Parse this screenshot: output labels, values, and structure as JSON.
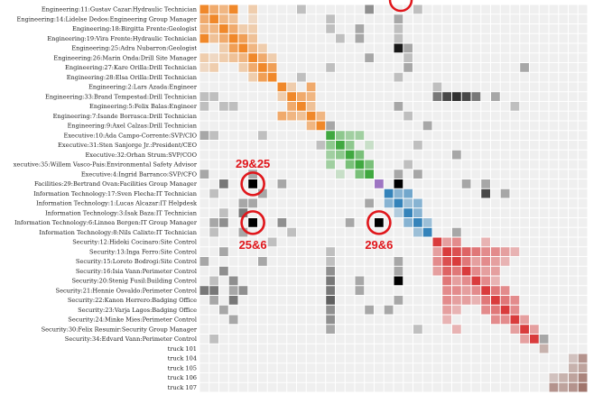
{
  "chart_data": {
    "type": "heatmap",
    "title": "",
    "xlabel": "",
    "ylabel": "",
    "grid": true,
    "legend": "none",
    "rows": [
      {
        "label": "Engineering:11:Gustav Cazar:Hydraulic Technician",
        "group": "engineering"
      },
      {
        "label": "Engineering:14:Lidelse Dedos:Engineering Group Manager",
        "group": "engineering"
      },
      {
        "label": "Engineering:18:Birgitta Frente:Geologist",
        "group": "engineering"
      },
      {
        "label": "Engineering:19:Vira Frente:Hydraulic Technician",
        "group": "engineering"
      },
      {
        "label": "Engineering:25:Adra Nubarron:Geologist",
        "group": "engineering"
      },
      {
        "label": "Engineering:26:Marin Onda:Drill Site Manager",
        "group": "engineering"
      },
      {
        "label": "Engineering:27:Kare Orilla:Drill Technician",
        "group": "engineering"
      },
      {
        "label": "Engineering:28:Elsa Orilla:Drill Technician",
        "group": "engineering"
      },
      {
        "label": "Engineering:2:Lars Azada:Engineer",
        "group": "engineering2"
      },
      {
        "label": "Engineering:33:Brand Tempestad:Drill Technician",
        "group": "engineering2"
      },
      {
        "label": "Engineering:5:Felix Balas:Engineer",
        "group": "engineering2"
      },
      {
        "label": "Engineering:7:Isande Borrasca:Drill Technician",
        "group": "engineering2"
      },
      {
        "label": "Engineering:9:Axel Calzas:Drill Technician",
        "group": "engineering2"
      },
      {
        "label": "Executive:10:Ada Campo-Corrente:SVP/CIO",
        "group": "executive"
      },
      {
        "label": "Executive:31:Sten Sanjorge Jr.:President/CEO",
        "group": "executive"
      },
      {
        "label": "Executive:32:Orhan Strum:SVP/COO",
        "group": "executive"
      },
      {
        "label": "xecutive:35:Willem Vasco-Pais:Environmental Safety Advisor",
        "group": "executive"
      },
      {
        "label": "Executive:4:Ingrid Barranco:SVP/CFO",
        "group": "executive"
      },
      {
        "label": "Facilities:29:Bertrand Ovan:Facilities Group Manager",
        "group": "facilities"
      },
      {
        "label": "Information Technology:17:Sven Flecha:IT Technician",
        "group": "it"
      },
      {
        "label": "Information Technology:1:Lucas Alcazar:IT Helpdesk",
        "group": "it"
      },
      {
        "label": "Information Technology:3:Isak Baza:IT Technician",
        "group": "it"
      },
      {
        "label": "Information Technology:6:Linnea Bergen:IT Group Manager",
        "group": "it"
      },
      {
        "label": "Information Technology:8:Nils Calixto:IT Technician",
        "group": "it"
      },
      {
        "label": "Security:12:Hideki Cocinaro:Site Control",
        "group": "security"
      },
      {
        "label": "Security:13:Inga Ferro:Site Control",
        "group": "security"
      },
      {
        "label": "Security:15:Loreto Bodrogi:Site Control",
        "group": "security"
      },
      {
        "label": "Security:16:Isia Vann:Perimeter Control",
        "group": "security"
      },
      {
        "label": "Security:20:Stenig Fusil:Building Control",
        "group": "security"
      },
      {
        "label": "Security:21:Hennie Osvaldo:Perimeter Control",
        "group": "security"
      },
      {
        "label": "Security:22:Kanon Herrero:Badging Office",
        "group": "security"
      },
      {
        "label": "Security:23:Varja Lagos:Badging Office",
        "group": "security"
      },
      {
        "label": "Security:24:Minke Mies:Perimeter Control",
        "group": "security"
      },
      {
        "label": "Security:30:Felix Resumir:Security Group Manager",
        "group": "security"
      },
      {
        "label": "Security:34:Edvard Vann:Perimeter Control",
        "group": "security"
      },
      {
        "label": "truck 101",
        "group": "truck"
      },
      {
        "label": "truck 104",
        "group": "truck"
      },
      {
        "label": "truck 105",
        "group": "truck"
      },
      {
        "label": "truck 106",
        "group": "truck"
      },
      {
        "label": "truck 107",
        "group": "truck"
      }
    ],
    "group_colors": {
      "engineering": "#f07c14",
      "engineering2": "#f07c14",
      "executive": "#2ca02c",
      "facilities": "#9467bd",
      "it": "#1f77b4",
      "security": "#d62728",
      "truck": "#8c564b",
      "cross": "#000000"
    },
    "cells": [
      [
        0,
        0,
        0.9
      ],
      [
        0,
        1,
        0.6
      ],
      [
        0,
        2,
        0.5
      ],
      [
        0,
        3,
        0.9
      ],
      [
        0,
        5,
        0.3
      ],
      [
        0,
        10,
        0.2
      ],
      [
        0,
        17,
        0.4
      ],
      [
        0,
        22,
        0.2
      ],
      [
        1,
        0,
        0.6
      ],
      [
        1,
        1,
        0.9
      ],
      [
        1,
        2,
        0.5
      ],
      [
        1,
        3,
        0.4
      ],
      [
        1,
        5,
        0.2
      ],
      [
        1,
        13,
        0.2
      ],
      [
        1,
        20,
        0.3
      ],
      [
        2,
        0,
        0.5
      ],
      [
        2,
        1,
        0.5
      ],
      [
        2,
        2,
        0.9
      ],
      [
        2,
        3,
        0.6
      ],
      [
        2,
        4,
        0.3
      ],
      [
        2,
        5,
        0.3
      ],
      [
        2,
        13,
        0.2
      ],
      [
        2,
        16,
        0.3
      ],
      [
        2,
        20,
        0.2
      ],
      [
        3,
        0,
        0.9
      ],
      [
        3,
        1,
        0.4
      ],
      [
        3,
        2,
        0.6
      ],
      [
        3,
        3,
        0.9
      ],
      [
        3,
        4,
        0.7
      ],
      [
        3,
        5,
        0.4
      ],
      [
        3,
        14,
        0.2
      ],
      [
        3,
        16,
        0.3
      ],
      [
        3,
        20,
        0.2
      ],
      [
        4,
        2,
        0.3
      ],
      [
        4,
        3,
        0.7
      ],
      [
        4,
        4,
        0.9
      ],
      [
        4,
        5,
        0.5
      ],
      [
        4,
        6,
        0.3
      ],
      [
        4,
        20,
        0.9
      ],
      [
        4,
        21,
        0.3
      ],
      [
        5,
        0,
        0.3
      ],
      [
        5,
        1,
        0.2
      ],
      [
        5,
        2,
        0.3
      ],
      [
        5,
        3,
        0.4
      ],
      [
        5,
        4,
        0.5
      ],
      [
        5,
        5,
        0.9
      ],
      [
        5,
        6,
        0.6
      ],
      [
        5,
        7,
        0.3
      ],
      [
        5,
        17,
        0.3
      ],
      [
        5,
        21,
        0.2
      ],
      [
        6,
        0,
        0.2
      ],
      [
        6,
        1,
        0.3
      ],
      [
        6,
        4,
        0.3
      ],
      [
        6,
        5,
        0.6
      ],
      [
        6,
        6,
        0.9
      ],
      [
        6,
        7,
        0.7
      ],
      [
        6,
        13,
        0.2
      ],
      [
        6,
        21,
        0.3
      ],
      [
        6,
        33,
        0.3
      ],
      [
        7,
        5,
        0.3
      ],
      [
        7,
        6,
        0.7
      ],
      [
        7,
        7,
        0.9
      ],
      [
        7,
        10,
        0.2
      ],
      [
        7,
        20,
        0.2
      ],
      [
        8,
        8,
        0.9
      ],
      [
        8,
        11,
        0.6
      ],
      [
        8,
        9,
        0.3
      ],
      [
        8,
        24,
        0.2
      ],
      [
        9,
        0,
        0.2
      ],
      [
        9,
        1,
        0.2
      ],
      [
        9,
        8,
        0.3
      ],
      [
        9,
        9,
        0.9
      ],
      [
        9,
        10,
        0.6
      ],
      [
        9,
        11,
        0.5
      ],
      [
        9,
        24,
        0.5
      ],
      [
        9,
        25,
        0.7
      ],
      [
        9,
        26,
        0.8
      ],
      [
        9,
        27,
        0.7
      ],
      [
        9,
        28,
        0.5
      ],
      [
        9,
        30,
        0.3
      ],
      [
        10,
        0,
        0.2
      ],
      [
        10,
        2,
        0.2
      ],
      [
        10,
        3,
        0.2
      ],
      [
        10,
        9,
        0.6
      ],
      [
        10,
        10,
        0.9
      ],
      [
        10,
        11,
        0.4
      ],
      [
        10,
        20,
        0.3
      ],
      [
        10,
        32,
        0.2
      ],
      [
        11,
        8,
        0.6
      ],
      [
        11,
        9,
        0.5
      ],
      [
        11,
        10,
        0.4
      ],
      [
        11,
        11,
        0.9
      ],
      [
        11,
        12,
        0.5
      ],
      [
        11,
        21,
        0.2
      ],
      [
        12,
        11,
        0.5
      ],
      [
        12,
        12,
        0.9
      ],
      [
        12,
        13,
        0.3
      ],
      [
        12,
        23,
        0.3
      ],
      [
        13,
        0,
        0.3
      ],
      [
        13,
        1,
        0.2
      ],
      [
        13,
        6,
        0.2
      ],
      [
        13,
        13,
        0.9
      ],
      [
        13,
        14,
        0.5
      ],
      [
        13,
        15,
        0.4
      ],
      [
        13,
        16,
        0.4
      ],
      [
        14,
        12,
        0.2
      ],
      [
        14,
        13,
        0.5
      ],
      [
        14,
        14,
        0.9
      ],
      [
        14,
        15,
        0.5
      ],
      [
        14,
        17,
        0.2
      ],
      [
        14,
        22,
        0.2
      ],
      [
        15,
        13,
        0.4
      ],
      [
        15,
        14,
        0.5
      ],
      [
        15,
        15,
        0.9
      ],
      [
        15,
        16,
        0.6
      ],
      [
        15,
        26,
        0.3
      ],
      [
        16,
        13,
        0.4
      ],
      [
        16,
        15,
        0.6
      ],
      [
        16,
        16,
        0.9
      ],
      [
        16,
        17,
        0.6
      ],
      [
        16,
        21,
        0.2
      ],
      [
        17,
        0,
        0.3
      ],
      [
        17,
        5,
        0.3
      ],
      [
        17,
        14,
        0.2
      ],
      [
        17,
        16,
        0.6
      ],
      [
        17,
        17,
        0.9
      ],
      [
        17,
        20,
        0.3
      ],
      [
        17,
        22,
        0.3
      ],
      [
        18,
        2,
        0.5
      ],
      [
        18,
        5,
        1.0
      ],
      [
        18,
        8,
        0.3
      ],
      [
        18,
        18,
        0.9
      ],
      [
        18,
        20,
        1.0
      ],
      [
        18,
        27,
        0.3
      ],
      [
        18,
        29,
        0.3
      ],
      [
        19,
        1,
        0.2
      ],
      [
        19,
        6,
        0.3
      ],
      [
        19,
        19,
        0.9
      ],
      [
        19,
        20,
        0.5
      ],
      [
        19,
        21,
        0.6
      ],
      [
        19,
        29,
        0.7
      ],
      [
        19,
        31,
        0.3
      ],
      [
        20,
        4,
        0.3
      ],
      [
        20,
        5,
        0.3
      ],
      [
        20,
        17,
        0.3
      ],
      [
        20,
        19,
        0.5
      ],
      [
        20,
        20,
        0.9
      ],
      [
        20,
        21,
        0.4
      ],
      [
        20,
        22,
        0.5
      ],
      [
        21,
        2,
        0.2
      ],
      [
        21,
        4,
        0.5
      ],
      [
        21,
        20,
        0.3
      ],
      [
        21,
        21,
        0.9
      ],
      [
        21,
        22,
        0.5
      ],
      [
        22,
        1,
        0.3
      ],
      [
        22,
        2,
        0.4
      ],
      [
        22,
        5,
        1.0
      ],
      [
        22,
        8,
        0.4
      ],
      [
        22,
        15,
        0.3
      ],
      [
        22,
        18,
        1.0
      ],
      [
        22,
        21,
        0.5
      ],
      [
        22,
        22,
        0.9
      ],
      [
        22,
        23,
        0.4
      ],
      [
        23,
        1,
        0.2
      ],
      [
        23,
        4,
        0.3
      ],
      [
        23,
        9,
        0.2
      ],
      [
        23,
        22,
        0.4
      ],
      [
        23,
        23,
        0.9
      ],
      [
        23,
        26,
        0.3
      ],
      [
        24,
        7,
        0.2
      ],
      [
        24,
        24,
        0.9
      ],
      [
        24,
        25,
        0.4
      ],
      [
        24,
        26,
        0.5
      ],
      [
        24,
        29,
        0.3
      ],
      [
        25,
        2,
        0.3
      ],
      [
        25,
        13,
        0.2
      ],
      [
        25,
        24,
        0.4
      ],
      [
        25,
        25,
        0.9
      ],
      [
        25,
        26,
        0.8
      ],
      [
        25,
        27,
        0.7
      ],
      [
        25,
        28,
        0.6
      ],
      [
        25,
        29,
        0.5
      ],
      [
        25,
        30,
        0.5
      ],
      [
        25,
        31,
        0.4
      ],
      [
        25,
        32,
        0.3
      ],
      [
        26,
        0,
        0.3
      ],
      [
        26,
        6,
        0.3
      ],
      [
        26,
        13,
        0.2
      ],
      [
        26,
        20,
        0.3
      ],
      [
        26,
        24,
        0.5
      ],
      [
        26,
        25,
        0.8
      ],
      [
        26,
        26,
        0.9
      ],
      [
        26,
        27,
        0.6
      ],
      [
        26,
        28,
        0.4
      ],
      [
        26,
        29,
        0.5
      ],
      [
        26,
        30,
        0.4
      ],
      [
        26,
        31,
        0.3
      ],
      [
        27,
        2,
        0.4
      ],
      [
        27,
        13,
        0.4
      ],
      [
        27,
        20,
        0.3
      ],
      [
        27,
        24,
        0.4
      ],
      [
        27,
        25,
        0.7
      ],
      [
        27,
        26,
        0.6
      ],
      [
        27,
        27,
        0.9
      ],
      [
        27,
        28,
        0.5
      ],
      [
        27,
        29,
        0.4
      ],
      [
        27,
        30,
        0.4
      ],
      [
        28,
        1,
        0.2
      ],
      [
        28,
        3,
        0.4
      ],
      [
        28,
        13,
        0.5
      ],
      [
        28,
        16,
        0.3
      ],
      [
        28,
        20,
        1.0
      ],
      [
        28,
        25,
        0.6
      ],
      [
        28,
        26,
        0.4
      ],
      [
        28,
        27,
        0.5
      ],
      [
        28,
        28,
        0.9
      ],
      [
        28,
        29,
        0.5
      ],
      [
        28,
        30,
        0.3
      ],
      [
        29,
        0,
        0.5
      ],
      [
        29,
        1,
        0.5
      ],
      [
        29,
        3,
        0.3
      ],
      [
        29,
        4,
        0.4
      ],
      [
        29,
        13,
        0.5
      ],
      [
        29,
        16,
        0.3
      ],
      [
        29,
        25,
        0.5
      ],
      [
        29,
        26,
        0.5
      ],
      [
        29,
        27,
        0.4
      ],
      [
        29,
        28,
        0.5
      ],
      [
        29,
        29,
        0.9
      ],
      [
        29,
        30,
        0.6
      ],
      [
        29,
        31,
        0.5
      ],
      [
        30,
        1,
        0.3
      ],
      [
        30,
        3,
        0.5
      ],
      [
        30,
        13,
        0.6
      ],
      [
        30,
        20,
        0.3
      ],
      [
        30,
        25,
        0.5
      ],
      [
        30,
        26,
        0.4
      ],
      [
        30,
        27,
        0.4
      ],
      [
        30,
        28,
        0.3
      ],
      [
        30,
        29,
        0.6
      ],
      [
        30,
        30,
        0.9
      ],
      [
        30,
        31,
        0.6
      ],
      [
        30,
        32,
        0.5
      ],
      [
        31,
        2,
        0.3
      ],
      [
        31,
        13,
        0.4
      ],
      [
        31,
        17,
        0.3
      ],
      [
        31,
        19,
        0.3
      ],
      [
        31,
        25,
        0.4
      ],
      [
        31,
        26,
        0.3
      ],
      [
        31,
        29,
        0.5
      ],
      [
        31,
        30,
        0.6
      ],
      [
        31,
        31,
        0.9
      ],
      [
        31,
        32,
        0.5
      ],
      [
        32,
        3,
        0.3
      ],
      [
        32,
        13,
        0.4
      ],
      [
        32,
        25,
        0.3
      ],
      [
        32,
        30,
        0.5
      ],
      [
        32,
        31,
        0.5
      ],
      [
        32,
        32,
        0.9
      ],
      [
        32,
        33,
        0.4
      ],
      [
        33,
        13,
        0.3
      ],
      [
        33,
        22,
        0.2
      ],
      [
        33,
        26,
        0.3
      ],
      [
        33,
        32,
        0.4
      ],
      [
        33,
        33,
        0.9
      ],
      [
        33,
        34,
        0.4
      ],
      [
        34,
        1,
        0.2
      ],
      [
        34,
        33,
        0.4
      ],
      [
        34,
        34,
        0.9
      ],
      [
        34,
        35,
        0.3
      ],
      [
        35,
        35,
        0.4
      ],
      [
        36,
        39,
        0.6
      ],
      [
        36,
        38,
        0.3
      ],
      [
        37,
        38,
        0.4
      ],
      [
        37,
        39,
        0.5
      ],
      [
        38,
        36,
        0.3
      ],
      [
        38,
        37,
        0.4
      ],
      [
        38,
        38,
        0.5
      ],
      [
        38,
        39,
        0.7
      ],
      [
        39,
        36,
        0.6
      ],
      [
        39,
        37,
        0.5
      ],
      [
        39,
        38,
        0.6
      ],
      [
        39,
        39,
        0.8
      ]
    ],
    "annotations": [
      {
        "label": "29&25",
        "row": 18,
        "col": 5,
        "text_pos": "above"
      },
      {
        "label": "25&6",
        "row": 22,
        "col": 5,
        "text_pos": "below"
      },
      {
        "label": "29&6",
        "row": 22,
        "col": 18,
        "text_pos": "below"
      }
    ]
  }
}
